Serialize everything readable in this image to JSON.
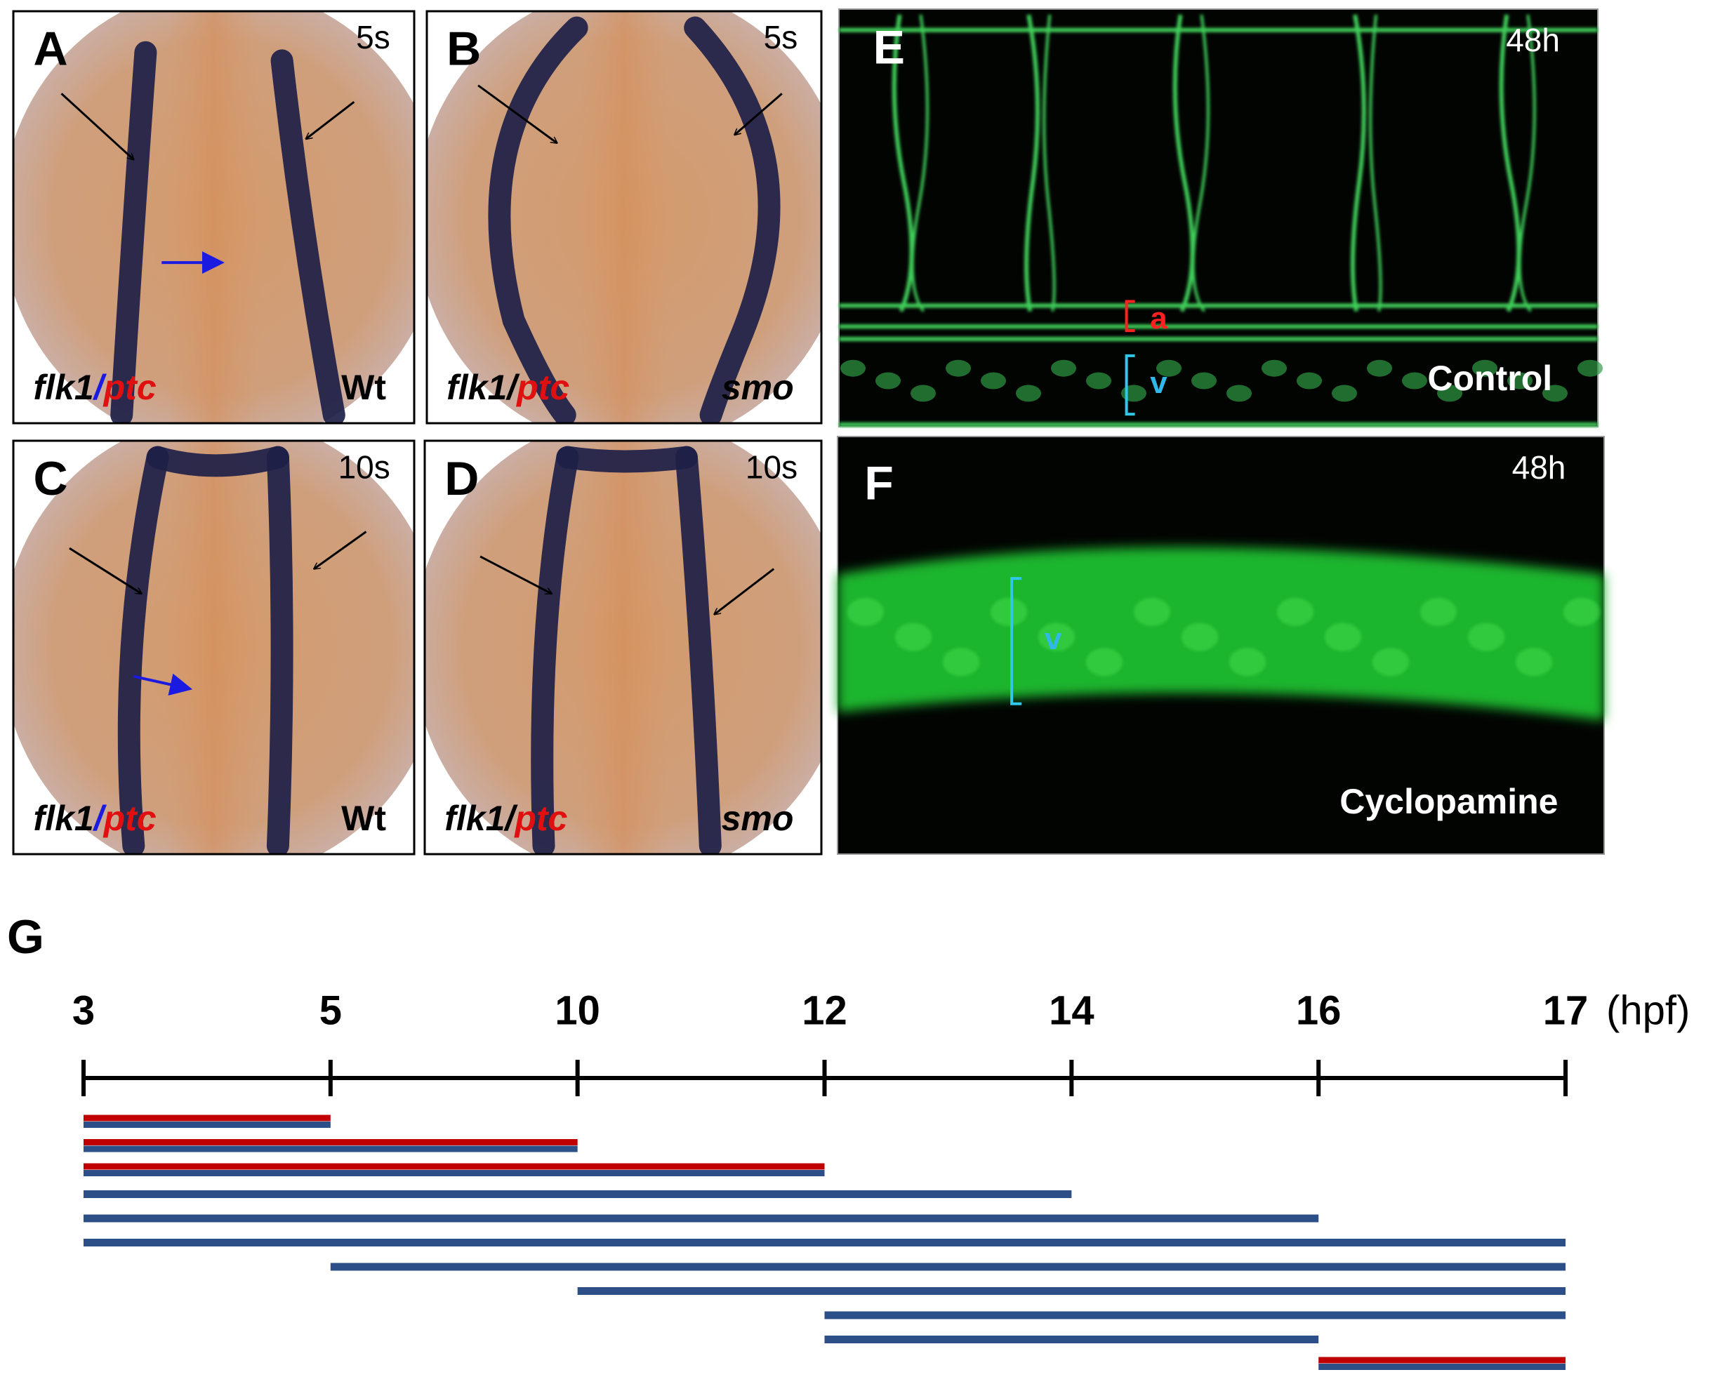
{
  "panels": [
    {
      "label": "A",
      "stage": "5s",
      "probe": {
        "marker": "flk1",
        "separator": "/",
        "target": "ptc"
      },
      "genotype": "Wt"
    },
    {
      "label": "B",
      "stage": "5s",
      "probe": {
        "marker": "flk1",
        "separator": "/",
        "target": "ptc"
      },
      "genotype": "smo"
    },
    {
      "label": "C",
      "stage": "10s",
      "probe": {
        "marker": "flk1",
        "separator": "/",
        "target": "ptc"
      },
      "genotype": "Wt"
    },
    {
      "label": "D",
      "stage": "10s",
      "probe": {
        "marker": "flk1",
        "separator": "/",
        "target": "ptc"
      },
      "genotype": "smo"
    },
    {
      "label": "E",
      "time": "48h",
      "artery_label": "a",
      "vein_label": "v",
      "condition": "Control"
    },
    {
      "label": "F",
      "time": "48h",
      "vein_label": "v",
      "condition": "Cyclopamine"
    }
  ],
  "timeline": {
    "label": "G",
    "ticks": [
      3,
      5,
      10,
      12,
      14,
      16,
      17
    ],
    "unit": "(hpf)",
    "bars": [
      {
        "start": 3,
        "end": 5,
        "colors": [
          "#c00000",
          "#2b4f86"
        ]
      },
      {
        "start": 3,
        "end": 10,
        "colors": [
          "#c00000",
          "#2b4f86"
        ]
      },
      {
        "start": 3,
        "end": 12,
        "colors": [
          "#c00000",
          "#2b4f86"
        ]
      },
      {
        "start": 3,
        "end": 14,
        "colors": [
          "#2b4f86"
        ]
      },
      {
        "start": 3,
        "end": 16,
        "colors": [
          "#2b4f86"
        ]
      },
      {
        "start": 3,
        "end": 17,
        "colors": [
          "#2b4f86"
        ]
      },
      {
        "start": 5,
        "end": 17,
        "colors": [
          "#2b4f86"
        ]
      },
      {
        "start": 10,
        "end": 17,
        "colors": [
          "#2b4f86"
        ]
      },
      {
        "start": 12,
        "end": 17,
        "colors": [
          "#2b4f86"
        ]
      },
      {
        "start": 12,
        "end": 16,
        "colors": [
          "#2b4f86"
        ]
      },
      {
        "start": 16,
        "end": 17,
        "colors": [
          "#c00000",
          "#2b4f86"
        ]
      }
    ]
  }
}
